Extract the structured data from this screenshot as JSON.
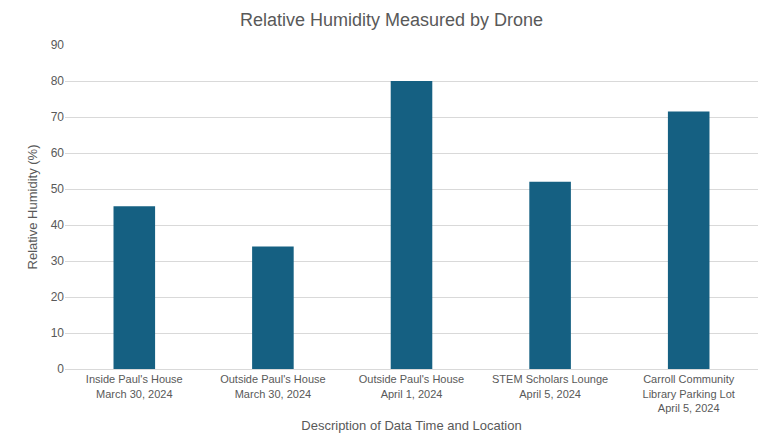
{
  "chart_data": {
    "type": "bar",
    "title": "Relative Humidity Measured by Drone",
    "x_label": "Description of Data Time and Location",
    "y_label": "Relative Humidity (%)",
    "categories": [
      "Inside Paul's House March 30, 2024",
      "Outside Paul's House March 30, 2024",
      "Outside Paul's House April 1, 2024",
      "STEM Scholars Lounge April 5, 2024",
      "Carroll Community Library Parking Lot April 5, 2024"
    ],
    "values": [
      45.2,
      34,
      80,
      52,
      71.5
    ],
    "color": "#156082",
    "ylim": [
      0,
      90
    ],
    "yticks": [
      0,
      10,
      20,
      30,
      40,
      50,
      60,
      70,
      80,
      90
    ],
    "grid": true
  }
}
